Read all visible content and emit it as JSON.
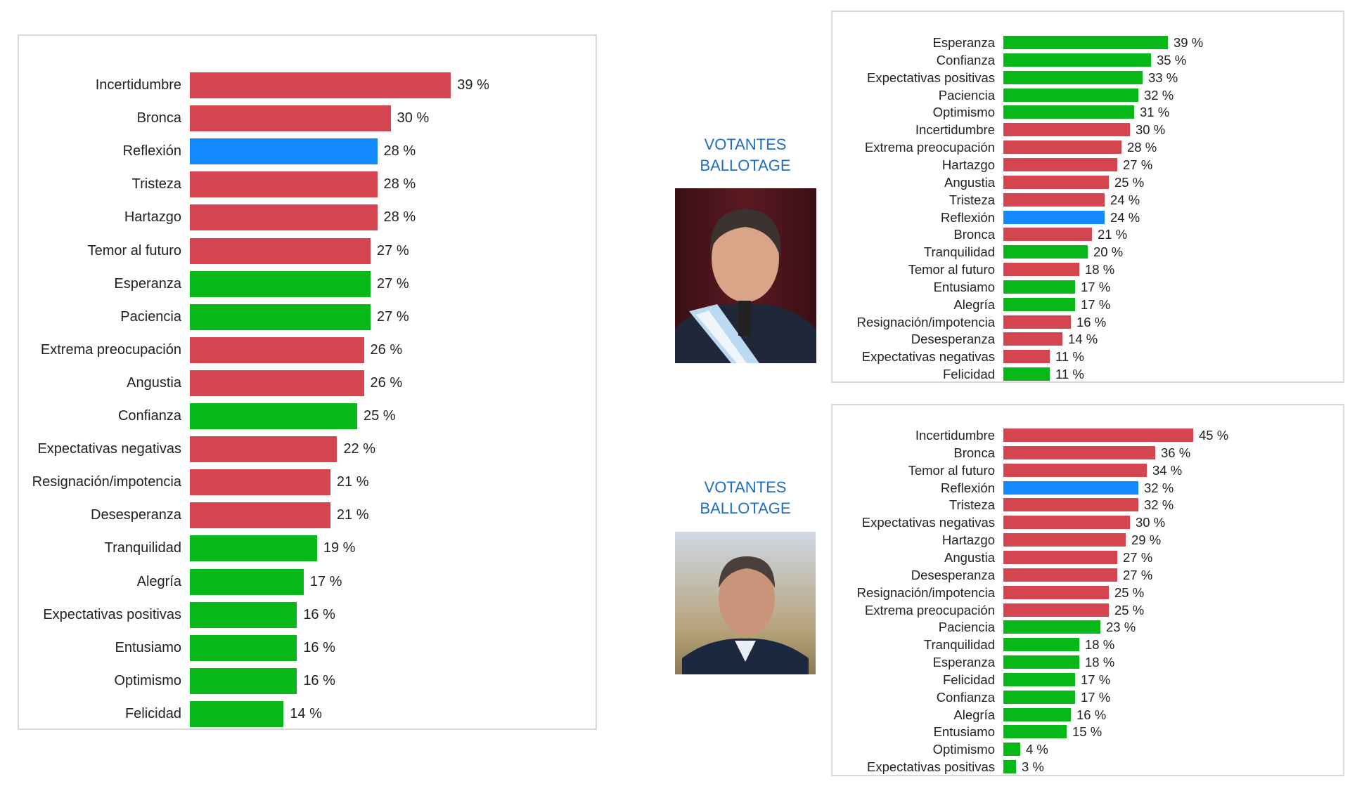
{
  "colors": {
    "negative": "#d5454f",
    "positive": "#08b819",
    "neutral": "#1289fd",
    "caption": "#1f6fc5"
  },
  "captions": {
    "top": [
      "VOTANTES",
      "BALLOTAGE"
    ],
    "bottom": [
      "VOTANTES",
      "BALLOTAGE"
    ]
  },
  "chart_data": [
    {
      "type": "bar",
      "orientation": "horizontal",
      "unit": "%",
      "categories": [
        "Incertidumbre",
        "Bronca",
        "Reflexión",
        "Tristeza",
        "Hartazgo",
        "Temor al futuro",
        "Esperanza",
        "Paciencia",
        "Extrema preocupación",
        "Angustia",
        "Confianza",
        "Expectativas negativas",
        "Resignación/impotencia",
        "Desesperanza",
        "Tranquilidad",
        "Alegría",
        "Expectativas positivas",
        "Entusiamo",
        "Optimismo",
        "Felicidad"
      ],
      "values": [
        39,
        30,
        28,
        28,
        28,
        27,
        27,
        27,
        26,
        26,
        25,
        22,
        21,
        21,
        19,
        17,
        16,
        16,
        16,
        14
      ],
      "colors": [
        "negative",
        "negative",
        "neutral",
        "negative",
        "negative",
        "negative",
        "positive",
        "positive",
        "negative",
        "negative",
        "positive",
        "negative",
        "negative",
        "negative",
        "positive",
        "positive",
        "positive",
        "positive",
        "positive",
        "positive"
      ],
      "labels": [
        "39 %",
        "30 %",
        "28 %",
        "28 %",
        "28 %",
        "27 %",
        "27 %",
        "27 %",
        "26 %",
        "26 %",
        "25 %",
        "22 %",
        "21 %",
        "21 %",
        "19 %",
        "17 %",
        "16 %",
        "16 %",
        "16 %",
        "14 %"
      ]
    },
    {
      "type": "bar",
      "orientation": "horizontal",
      "unit": "%",
      "categories": [
        "Esperanza",
        "Confianza",
        "Expectativas positivas",
        "Paciencia",
        "Optimismo",
        "Incertidumbre",
        "Extrema preocupación",
        "Hartazgo",
        "Angustia",
        "Tristeza",
        "Reflexión",
        "Bronca",
        "Tranquilidad",
        "Temor al futuro",
        "Entusiamo",
        "Alegría",
        "Resignación/impotencia",
        "Desesperanza",
        "Expectativas negativas",
        "Felicidad"
      ],
      "values": [
        39,
        35,
        33,
        32,
        31,
        30,
        28,
        27,
        25,
        24,
        24,
        21,
        20,
        18,
        17,
        17,
        16,
        14,
        11,
        11
      ],
      "colors": [
        "positive",
        "positive",
        "positive",
        "positive",
        "positive",
        "negative",
        "negative",
        "negative",
        "negative",
        "negative",
        "neutral",
        "negative",
        "positive",
        "negative",
        "positive",
        "positive",
        "negative",
        "negative",
        "negative",
        "positive"
      ],
      "labels": [
        "39 %",
        "35 %",
        "33 %",
        "32 %",
        "31 %",
        "30 %",
        "28 %",
        "27 %",
        "25 %",
        "24 %",
        "24 %",
        "21 %",
        "20 %",
        "18 %",
        "17 %",
        "17 %",
        "16 %",
        "14 %",
        "11 %",
        "11 %"
      ]
    },
    {
      "type": "bar",
      "orientation": "horizontal",
      "unit": "%",
      "categories": [
        "Incertidumbre",
        "Bronca",
        "Temor al futuro",
        "Reflexión",
        "Tristeza",
        "Expectativas negativas",
        "Hartazgo",
        "Angustia",
        "Desesperanza",
        "Resignación/impotencia",
        "Extrema preocupación",
        "Paciencia",
        "Tranquilidad",
        "Esperanza",
        "Felicidad",
        "Confianza",
        "Alegría",
        "Entusiamo",
        "Optimismo",
        "Expectativas positivas"
      ],
      "values": [
        45,
        36,
        34,
        32,
        32,
        30,
        29,
        27,
        27,
        25,
        25,
        23,
        18,
        18,
        17,
        17,
        16,
        15,
        4,
        3
      ],
      "colors": [
        "negative",
        "negative",
        "negative",
        "neutral",
        "negative",
        "negative",
        "negative",
        "negative",
        "negative",
        "negative",
        "negative",
        "positive",
        "positive",
        "positive",
        "positive",
        "positive",
        "positive",
        "positive",
        "positive",
        "positive"
      ],
      "labels": [
        "45 %",
        "36 %",
        "34 %",
        "32 %",
        "32 %",
        "30 %",
        "29 %",
        "27 %",
        "27 %",
        "25 %",
        "25 %",
        "23 %",
        "18 %",
        "18 %",
        "17 %",
        "17 %",
        "16 %",
        "15 %",
        "4 %",
        "3 %"
      ]
    }
  ]
}
